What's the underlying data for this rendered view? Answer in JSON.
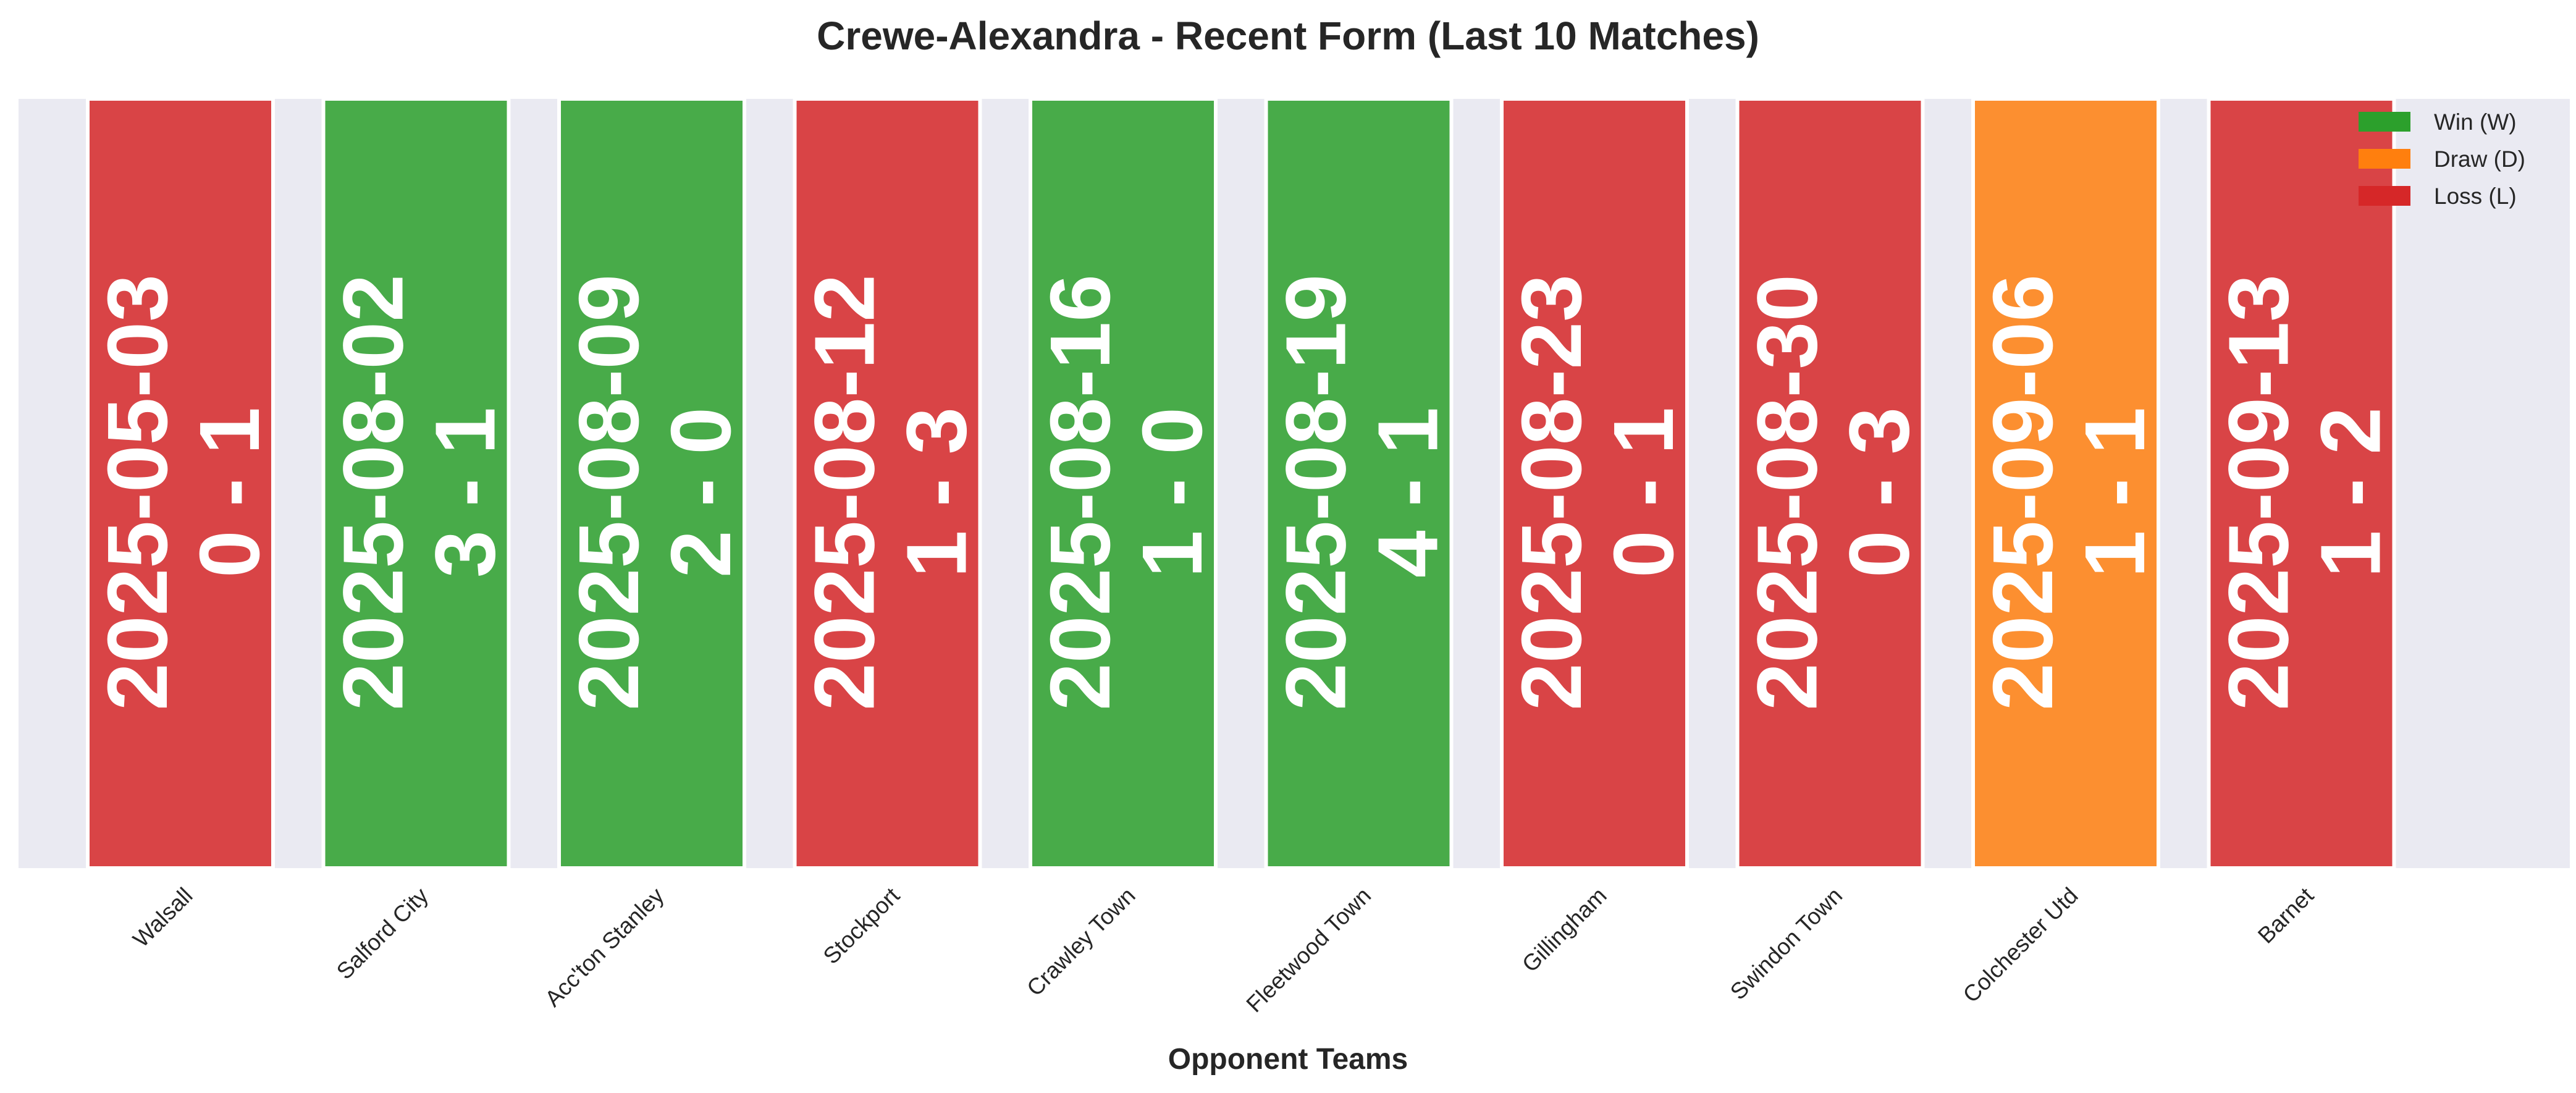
{
  "chart_data": {
    "type": "bar",
    "title": "Crewe-Alexandra - Recent Form (Last 10 Matches)",
    "xlabel": "Opponent Teams",
    "ylabel": "",
    "grid": false,
    "legend_position": "top-right",
    "categories": [
      "Walsall",
      "Salford City",
      "Acc'ton Stanley",
      "Stockport",
      "Crawley Town",
      "Fleetwood Town",
      "Gillingham",
      "Swindon Town",
      "Colchester Utd",
      "Barnet"
    ],
    "matches": [
      {
        "opponent": "Walsall",
        "date": "2025-05-03",
        "score": "0 - 1",
        "result": "L"
      },
      {
        "opponent": "Salford City",
        "date": "2025-08-02",
        "score": "3 - 1",
        "result": "W"
      },
      {
        "opponent": "Acc'ton Stanley",
        "date": "2025-08-09",
        "score": "2 - 0",
        "result": "W"
      },
      {
        "opponent": "Stockport",
        "date": "2025-08-12",
        "score": "1 - 3",
        "result": "L"
      },
      {
        "opponent": "Crawley Town",
        "date": "2025-08-16",
        "score": "1 - 0",
        "result": "W"
      },
      {
        "opponent": "Fleetwood Town",
        "date": "2025-08-19",
        "score": "4 - 1",
        "result": "W"
      },
      {
        "opponent": "Gillingham",
        "date": "2025-08-23",
        "score": "0 - 1",
        "result": "L"
      },
      {
        "opponent": "Swindon Town",
        "date": "2025-08-30",
        "score": "0 - 3",
        "result": "L"
      },
      {
        "opponent": "Colchester Utd",
        "date": "2025-09-06",
        "score": "1 - 1",
        "result": "D"
      },
      {
        "opponent": "Barnet",
        "date": "2025-09-13",
        "score": "1 - 2",
        "result": "L"
      }
    ],
    "legend": [
      {
        "label": "Win (W)",
        "result": "W",
        "color": "#2ca02c"
      },
      {
        "label": "Draw (D)",
        "result": "D",
        "color": "#ff7f0e"
      },
      {
        "label": "Loss (L)",
        "result": "L",
        "color": "#d62728"
      }
    ],
    "colors": {
      "W": "#2ca02c",
      "D": "#ff7f0e",
      "L": "#d62728",
      "plot_background": "#eaeaf2"
    }
  }
}
